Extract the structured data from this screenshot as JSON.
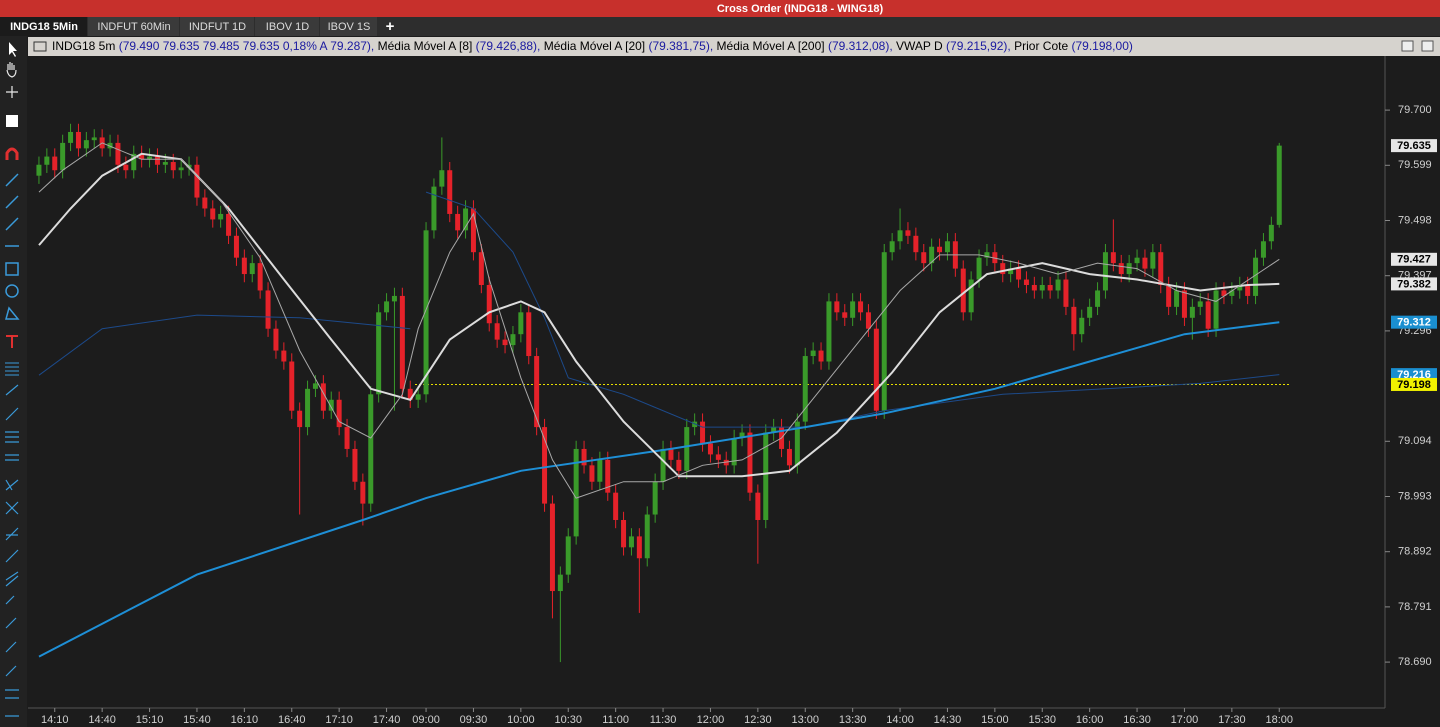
{
  "window_title": "Cross Order (INDG18 - WING18)",
  "tabs": [
    "INDG18 5Min",
    "INDFUT 60Min",
    "INDFUT 1D",
    "IBOV 1D",
    "IBOV 1S"
  ],
  "add_tab": "+",
  "chart_data": {
    "type": "candlestick",
    "symbol_legend": {
      "name": "INDG18 5m",
      "value": "(79.490  79.635  79.485  79.635  0,18%  A 79.287),"
    },
    "up_color": "#3a9a2a",
    "down_color": "#e5222a",
    "categories": [
      null,
      null,
      "14:10",
      null,
      null,
      null,
      null,
      null,
      "14:40",
      null,
      null,
      null,
      null,
      null,
      "15:10",
      null,
      null,
      null,
      null,
      null,
      "15:40",
      null,
      null,
      null,
      null,
      null,
      "16:10",
      null,
      null,
      null,
      null,
      null,
      "16:40",
      null,
      null,
      null,
      null,
      null,
      "17:10",
      null,
      null,
      null,
      null,
      null,
      "17:40",
      null,
      null,
      null,
      null,
      "09:00",
      null,
      null,
      null,
      null,
      null,
      "09:30",
      null,
      null,
      null,
      null,
      null,
      "10:00",
      null,
      null,
      null,
      null,
      null,
      "10:30",
      null,
      null,
      null,
      null,
      null,
      "11:00",
      null,
      null,
      null,
      null,
      null,
      "11:30",
      null,
      null,
      null,
      null,
      null,
      "12:00",
      null,
      null,
      null,
      null,
      null,
      "12:30",
      null,
      null,
      null,
      null,
      null,
      "13:00",
      null,
      null,
      null,
      null,
      null,
      "13:30",
      null,
      null,
      null,
      null,
      null,
      "14:00",
      null,
      null,
      null,
      null,
      null,
      "14:30",
      null,
      null,
      null,
      null,
      null,
      "15:00",
      null,
      null,
      null,
      null,
      null,
      "15:30",
      null,
      null,
      null,
      null,
      null,
      "16:00",
      null,
      null,
      null,
      null,
      null,
      "16:30",
      null,
      null,
      null,
      null,
      null,
      "17:00",
      null,
      null,
      null,
      null,
      null,
      "17:30",
      null,
      null,
      null,
      null,
      null,
      "18:00"
    ],
    "values": [
      [
        79.58,
        79.615,
        79.565,
        79.6
      ],
      [
        79.6,
        79.63,
        79.585,
        79.615
      ],
      [
        79.615,
        79.63,
        79.575,
        79.59
      ],
      [
        79.59,
        79.655,
        79.575,
        79.64
      ],
      [
        79.64,
        79.675,
        79.625,
        79.66
      ],
      [
        79.66,
        79.675,
        79.615,
        79.63
      ],
      [
        79.63,
        79.66,
        79.615,
        79.645
      ],
      [
        79.645,
        79.665,
        79.63,
        79.65
      ],
      [
        79.65,
        79.665,
        79.615,
        79.63
      ],
      [
        79.63,
        79.655,
        79.615,
        79.64
      ],
      [
        79.64,
        79.655,
        79.585,
        79.6
      ],
      [
        79.6,
        79.615,
        79.575,
        79.59
      ],
      [
        79.59,
        79.635,
        79.575,
        79.62
      ],
      [
        79.62,
        79.635,
        79.595,
        79.61
      ],
      [
        79.61,
        79.63,
        79.595,
        79.615
      ],
      [
        79.615,
        79.63,
        79.585,
        79.6
      ],
      [
        79.6,
        79.62,
        79.585,
        79.605
      ],
      [
        79.605,
        79.62,
        79.575,
        79.59
      ],
      [
        79.59,
        79.61,
        79.575,
        79.595
      ],
      [
        79.595,
        79.615,
        79.58,
        79.6
      ],
      [
        79.6,
        79.615,
        79.525,
        79.54
      ],
      [
        79.54,
        79.555,
        79.505,
        79.52
      ],
      [
        79.52,
        79.535,
        79.485,
        79.5
      ],
      [
        79.5,
        79.525,
        79.485,
        79.51
      ],
      [
        79.51,
        79.525,
        79.455,
        79.47
      ],
      [
        79.47,
        79.485,
        79.415,
        79.43
      ],
      [
        79.43,
        79.445,
        79.385,
        79.4
      ],
      [
        79.4,
        79.435,
        79.385,
        79.42
      ],
      [
        79.42,
        79.435,
        79.355,
        79.37
      ],
      [
        79.37,
        79.385,
        79.285,
        79.3
      ],
      [
        79.3,
        79.315,
        79.245,
        79.26
      ],
      [
        79.26,
        79.275,
        79.225,
        79.24
      ],
      [
        79.24,
        79.255,
        79.135,
        79.15
      ],
      [
        79.15,
        79.165,
        78.96,
        79.12
      ],
      [
        79.12,
        79.205,
        79.105,
        79.19
      ],
      [
        79.19,
        79.215,
        79.175,
        79.2
      ],
      [
        79.2,
        79.215,
        79.135,
        79.15
      ],
      [
        79.15,
        79.185,
        79.135,
        79.17
      ],
      [
        79.17,
        79.185,
        79.105,
        79.12
      ],
      [
        79.12,
        79.135,
        79.065,
        79.08
      ],
      [
        79.08,
        79.095,
        79.005,
        79.02
      ],
      [
        79.02,
        79.035,
        78.94,
        78.98
      ],
      [
        78.98,
        79.195,
        78.965,
        79.18
      ],
      [
        79.18,
        79.345,
        79.165,
        79.33
      ],
      [
        79.33,
        79.365,
        79.315,
        79.35
      ],
      [
        79.35,
        79.375,
        79.15,
        79.36
      ],
      [
        79.36,
        79.375,
        79.175,
        79.19
      ],
      [
        79.19,
        79.205,
        79.155,
        79.17
      ],
      [
        79.17,
        79.195,
        79.155,
        79.18
      ],
      [
        79.18,
        79.495,
        79.165,
        79.48
      ],
      [
        79.48,
        79.575,
        79.465,
        79.56
      ],
      [
        79.56,
        79.65,
        79.545,
        79.59
      ],
      [
        79.59,
        79.605,
        79.495,
        79.51
      ],
      [
        79.51,
        79.525,
        79.465,
        79.48
      ],
      [
        79.48,
        79.535,
        79.465,
        79.52
      ],
      [
        79.52,
        79.535,
        79.425,
        79.44
      ],
      [
        79.44,
        79.455,
        79.365,
        79.38
      ],
      [
        79.38,
        79.395,
        79.295,
        79.31
      ],
      [
        79.31,
        79.325,
        79.265,
        79.28
      ],
      [
        79.28,
        79.295,
        79.255,
        79.27
      ],
      [
        79.27,
        79.305,
        79.255,
        79.29
      ],
      [
        79.29,
        79.345,
        79.275,
        79.33
      ],
      [
        79.33,
        79.345,
        79.235,
        79.25
      ],
      [
        79.25,
        79.265,
        79.105,
        79.12
      ],
      [
        79.12,
        79.135,
        78.965,
        78.98
      ],
      [
        78.98,
        78.995,
        78.77,
        78.82
      ],
      [
        78.82,
        78.865,
        78.69,
        78.85
      ],
      [
        78.85,
        78.935,
        78.835,
        78.92
      ],
      [
        78.92,
        79.095,
        78.905,
        79.08
      ],
      [
        79.08,
        79.095,
        79.035,
        79.05
      ],
      [
        79.05,
        79.065,
        79.005,
        79.02
      ],
      [
        79.02,
        79.075,
        79.005,
        79.06
      ],
      [
        79.06,
        79.075,
        78.985,
        79
      ],
      [
        79,
        79.015,
        78.935,
        78.95
      ],
      [
        78.95,
        78.965,
        78.885,
        78.9
      ],
      [
        78.9,
        78.935,
        78.885,
        78.92
      ],
      [
        78.92,
        78.935,
        78.78,
        78.88
      ],
      [
        78.88,
        78.975,
        78.865,
        78.96
      ],
      [
        78.96,
        79.035,
        78.945,
        79.02
      ],
      [
        79.02,
        79.095,
        79.005,
        79.08
      ],
      [
        79.08,
        79.095,
        79.045,
        79.06
      ],
      [
        79.06,
        79.075,
        79.025,
        79.04
      ],
      [
        79.04,
        79.135,
        79.025,
        79.12
      ],
      [
        79.12,
        79.145,
        79.105,
        79.13
      ],
      [
        79.13,
        79.145,
        79.075,
        79.09
      ],
      [
        79.09,
        79.105,
        79.055,
        79.07
      ],
      [
        79.07,
        79.085,
        79.045,
        79.06
      ],
      [
        79.06,
        79.075,
        79.035,
        79.05
      ],
      [
        79.05,
        79.115,
        79.035,
        79.1
      ],
      [
        79.1,
        79.125,
        79.085,
        79.11
      ],
      [
        79.11,
        79.125,
        78.985,
        79
      ],
      [
        79,
        79.015,
        78.87,
        78.95
      ],
      [
        78.95,
        79.125,
        78.935,
        79.11
      ],
      [
        79.11,
        79.135,
        79.095,
        79.12
      ],
      [
        79.12,
        79.135,
        79.065,
        79.08
      ],
      [
        79.08,
        79.095,
        79.035,
        79.05
      ],
      [
        79.05,
        79.145,
        79.035,
        79.13
      ],
      [
        79.13,
        79.265,
        79.115,
        79.25
      ],
      [
        79.25,
        79.275,
        79.235,
        79.26
      ],
      [
        79.26,
        79.275,
        79.225,
        79.24
      ],
      [
        79.24,
        79.365,
        79.225,
        79.35
      ],
      [
        79.35,
        79.365,
        79.315,
        79.33
      ],
      [
        79.33,
        79.345,
        79.305,
        79.32
      ],
      [
        79.32,
        79.365,
        79.305,
        79.35
      ],
      [
        79.35,
        79.365,
        79.315,
        79.33
      ],
      [
        79.33,
        79.345,
        79.285,
        79.3
      ],
      [
        79.3,
        79.315,
        79.135,
        79.15
      ],
      [
        79.15,
        79.455,
        79.135,
        79.44
      ],
      [
        79.44,
        79.475,
        79.425,
        79.46
      ],
      [
        79.46,
        79.52,
        79.445,
        79.48
      ],
      [
        79.48,
        79.495,
        79.455,
        79.47
      ],
      [
        79.47,
        79.485,
        79.425,
        79.44
      ],
      [
        79.44,
        79.455,
        79.405,
        79.42
      ],
      [
        79.42,
        79.465,
        79.405,
        79.45
      ],
      [
        79.45,
        79.465,
        79.425,
        79.44
      ],
      [
        79.44,
        79.475,
        79.425,
        79.46
      ],
      [
        79.46,
        79.475,
        79.395,
        79.41
      ],
      [
        79.41,
        79.425,
        79.315,
        79.33
      ],
      [
        79.33,
        79.405,
        79.315,
        79.39
      ],
      [
        79.39,
        79.445,
        79.375,
        79.43
      ],
      [
        79.43,
        79.455,
        79.415,
        79.44
      ],
      [
        79.44,
        79.455,
        79.405,
        79.42
      ],
      [
        79.42,
        79.435,
        79.385,
        79.4
      ],
      [
        79.4,
        79.425,
        79.385,
        79.41
      ],
      [
        79.41,
        79.425,
        79.375,
        79.39
      ],
      [
        79.39,
        79.405,
        79.365,
        79.38
      ],
      [
        79.38,
        79.395,
        79.355,
        79.37
      ],
      [
        79.37,
        79.395,
        79.355,
        79.38
      ],
      [
        79.38,
        79.395,
        79.355,
        79.37
      ],
      [
        79.37,
        79.405,
        79.355,
        79.39
      ],
      [
        79.39,
        79.405,
        79.325,
        79.34
      ],
      [
        79.34,
        79.355,
        79.26,
        79.29
      ],
      [
        79.29,
        79.335,
        79.275,
        79.32
      ],
      [
        79.32,
        79.355,
        79.305,
        79.34
      ],
      [
        79.34,
        79.385,
        79.325,
        79.37
      ],
      [
        79.37,
        79.455,
        79.355,
        79.44
      ],
      [
        79.44,
        79.5,
        79.405,
        79.42
      ],
      [
        79.42,
        79.435,
        79.385,
        79.4
      ],
      [
        79.4,
        79.435,
        79.385,
        79.42
      ],
      [
        79.42,
        79.445,
        79.405,
        79.43
      ],
      [
        79.43,
        79.445,
        79.395,
        79.41
      ],
      [
        79.41,
        79.455,
        79.395,
        79.44
      ],
      [
        79.44,
        79.455,
        79.365,
        79.38
      ],
      [
        79.38,
        79.395,
        79.325,
        79.34
      ],
      [
        79.34,
        79.385,
        79.325,
        79.37
      ],
      [
        79.37,
        79.385,
        79.305,
        79.32
      ],
      [
        79.32,
        79.355,
        79.28,
        79.34
      ],
      [
        79.34,
        79.365,
        79.325,
        79.35
      ],
      [
        79.35,
        79.365,
        79.285,
        79.3
      ],
      [
        79.3,
        79.385,
        79.285,
        79.37
      ],
      [
        79.37,
        79.385,
        79.345,
        79.36
      ],
      [
        79.36,
        79.385,
        79.345,
        79.37
      ],
      [
        79.37,
        79.395,
        79.355,
        79.38
      ],
      [
        79.38,
        79.395,
        79.345,
        79.36
      ],
      [
        79.36,
        79.445,
        79.345,
        79.43
      ],
      [
        79.43,
        79.475,
        79.415,
        79.46
      ],
      [
        79.46,
        79.505,
        79.445,
        79.49
      ],
      [
        79.49,
        79.64,
        79.485,
        79.635
      ]
    ],
    "lines": [
      {
        "name": "Média Móvel A [8]",
        "legend_value": "(79.426,88),",
        "color": "#a8a8a8",
        "width": 1,
        "x": [
          0,
          3,
          8,
          13,
          18,
          23,
          28,
          33,
          38,
          42,
          46,
          48,
          52,
          55,
          57,
          61,
          65,
          68,
          74,
          79,
          84,
          89,
          94,
          99,
          104,
          109,
          114,
          119,
          124,
          129,
          134,
          139,
          144,
          149,
          157
        ],
        "values": [
          79.55,
          79.59,
          79.64,
          79.61,
          79.61,
          79.535,
          79.43,
          79.26,
          79.13,
          79.1,
          79.18,
          79.3,
          79.44,
          79.51,
          79.39,
          79.21,
          79.06,
          78.99,
          79.02,
          79.02,
          79.05,
          79.06,
          79.1,
          79.19,
          79.28,
          79.37,
          79.435,
          79.435,
          79.42,
          79.4,
          79.42,
          79.41,
          79.37,
          79.35,
          79.427
        ]
      },
      {
        "name": "Média Móvel A [20]",
        "legend_value": "(79.381,75),",
        "color": "#dcdcdc",
        "width": 2,
        "x": [
          0,
          4,
          8,
          13,
          18,
          24,
          31,
          37,
          42,
          47,
          52,
          57,
          61,
          64,
          68,
          74,
          81,
          89,
          95,
          101,
          108,
          114,
          120,
          127,
          133,
          139,
          147,
          153,
          157
        ],
        "values": [
          79.453,
          79.52,
          79.58,
          79.62,
          79.61,
          79.52,
          79.39,
          79.28,
          79.19,
          79.17,
          79.28,
          79.33,
          79.35,
          79.33,
          79.24,
          79.13,
          79.03,
          79.03,
          79.04,
          79.11,
          79.22,
          79.33,
          79.4,
          79.42,
          79.4,
          79.39,
          79.37,
          79.38,
          79.382
        ]
      },
      {
        "name": "Média Móvel A [200]",
        "legend_value": "(79.312,08),",
        "color": "#1e8fd6",
        "width": 2,
        "x": [
          0,
          20,
          41,
          49,
          61,
          80,
          97,
          107,
          121,
          133,
          145,
          157
        ],
        "values": [
          78.7,
          78.85,
          78.95,
          78.99,
          79.04,
          79.08,
          79.12,
          79.145,
          79.19,
          79.24,
          79.29,
          79.312
        ]
      },
      {
        "name": "VWAP D",
        "legend_value": "(79.215,92),",
        "color": "#1c4a8a",
        "width": 1,
        "x": [
          0,
          8,
          20,
          33,
          47,
          48,
          49,
          55,
          60,
          64,
          67,
          74,
          84,
          97,
          107,
          122,
          135,
          147,
          157
        ],
        "values": [
          79.215,
          79.3,
          79.325,
          79.32,
          79.3,
          null,
          79.55,
          79.52,
          79.44,
          79.32,
          79.21,
          79.18,
          79.12,
          79.12,
          79.15,
          79.18,
          79.19,
          79.2,
          79.216
        ]
      }
    ],
    "reference_line": {
      "name": "Prior Cote",
      "legend_value": "(79.198,00)",
      "value": 79.198,
      "color": "#e8e000"
    },
    "price_markers": [
      {
        "value": 79.635,
        "background": "#e6e6e6",
        "color": "#000000"
      },
      {
        "value": 79.427,
        "background": "#e6e6e6",
        "color": "#000000"
      },
      {
        "value": 79.382,
        "background": "#e6e6e6",
        "color": "#000000"
      },
      {
        "value": 79.312,
        "background": "#1a8fd0",
        "color": "#ffffff"
      },
      {
        "value": 79.216,
        "background": "#1a8fd0",
        "color": "#ffffff"
      },
      {
        "value": 79.198,
        "background": "#f0f000",
        "color": "#000000"
      }
    ],
    "ylim": [
      78.606,
      79.799
    ],
    "yticks": [
      {
        "value": 79.7,
        "label": "79.700"
      },
      79.599,
      79.498,
      79.397,
      79.296,
      79.094,
      78.993,
      78.892,
      78.791,
      {
        "value": 78.69,
        "label": "78.690"
      }
    ]
  }
}
